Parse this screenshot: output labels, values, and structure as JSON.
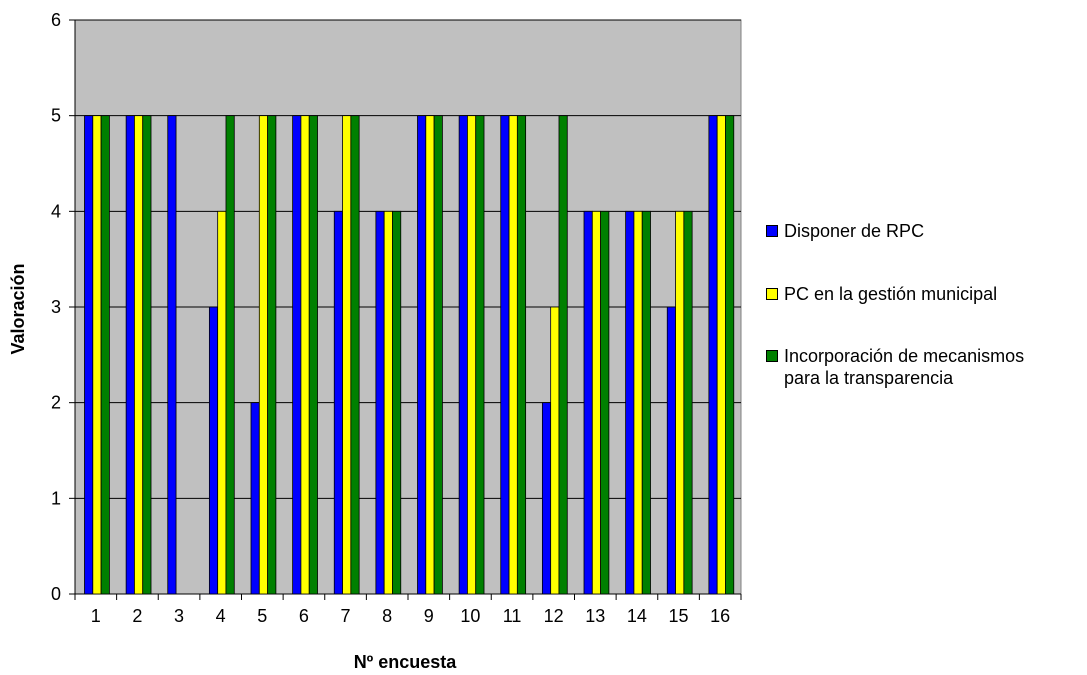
{
  "chart_data": {
    "type": "bar",
    "xlabel": "Nº encuesta",
    "ylabel": "Valoración",
    "ylim": [
      0,
      6
    ],
    "yticks": [
      0,
      1,
      2,
      3,
      4,
      5,
      6
    ],
    "grid": true,
    "legend_position": "right",
    "categories": [
      "1",
      "2",
      "3",
      "4",
      "5",
      "6",
      "7",
      "8",
      "9",
      "10",
      "11",
      "12",
      "13",
      "14",
      "15",
      "16"
    ],
    "series": [
      {
        "name": "Disponer de RPC",
        "color": "#0000ff",
        "values": [
          5,
          5,
          5,
          3,
          2,
          5,
          4,
          4,
          5,
          5,
          5,
          2,
          4,
          4,
          3,
          5
        ]
      },
      {
        "name": "PC en la gestión municipal",
        "color": "#ffff00",
        "values": [
          5,
          5,
          0,
          4,
          5,
          5,
          5,
          4,
          5,
          5,
          5,
          3,
          4,
          4,
          4,
          5
        ]
      },
      {
        "name": "Incorporación de mecanismos\npara la transparencia",
        "color": "#008000",
        "values": [
          5,
          5,
          0,
          5,
          5,
          5,
          5,
          4,
          5,
          5,
          5,
          5,
          4,
          4,
          4,
          5
        ]
      }
    ],
    "plot_background": "#c0c0c0"
  }
}
